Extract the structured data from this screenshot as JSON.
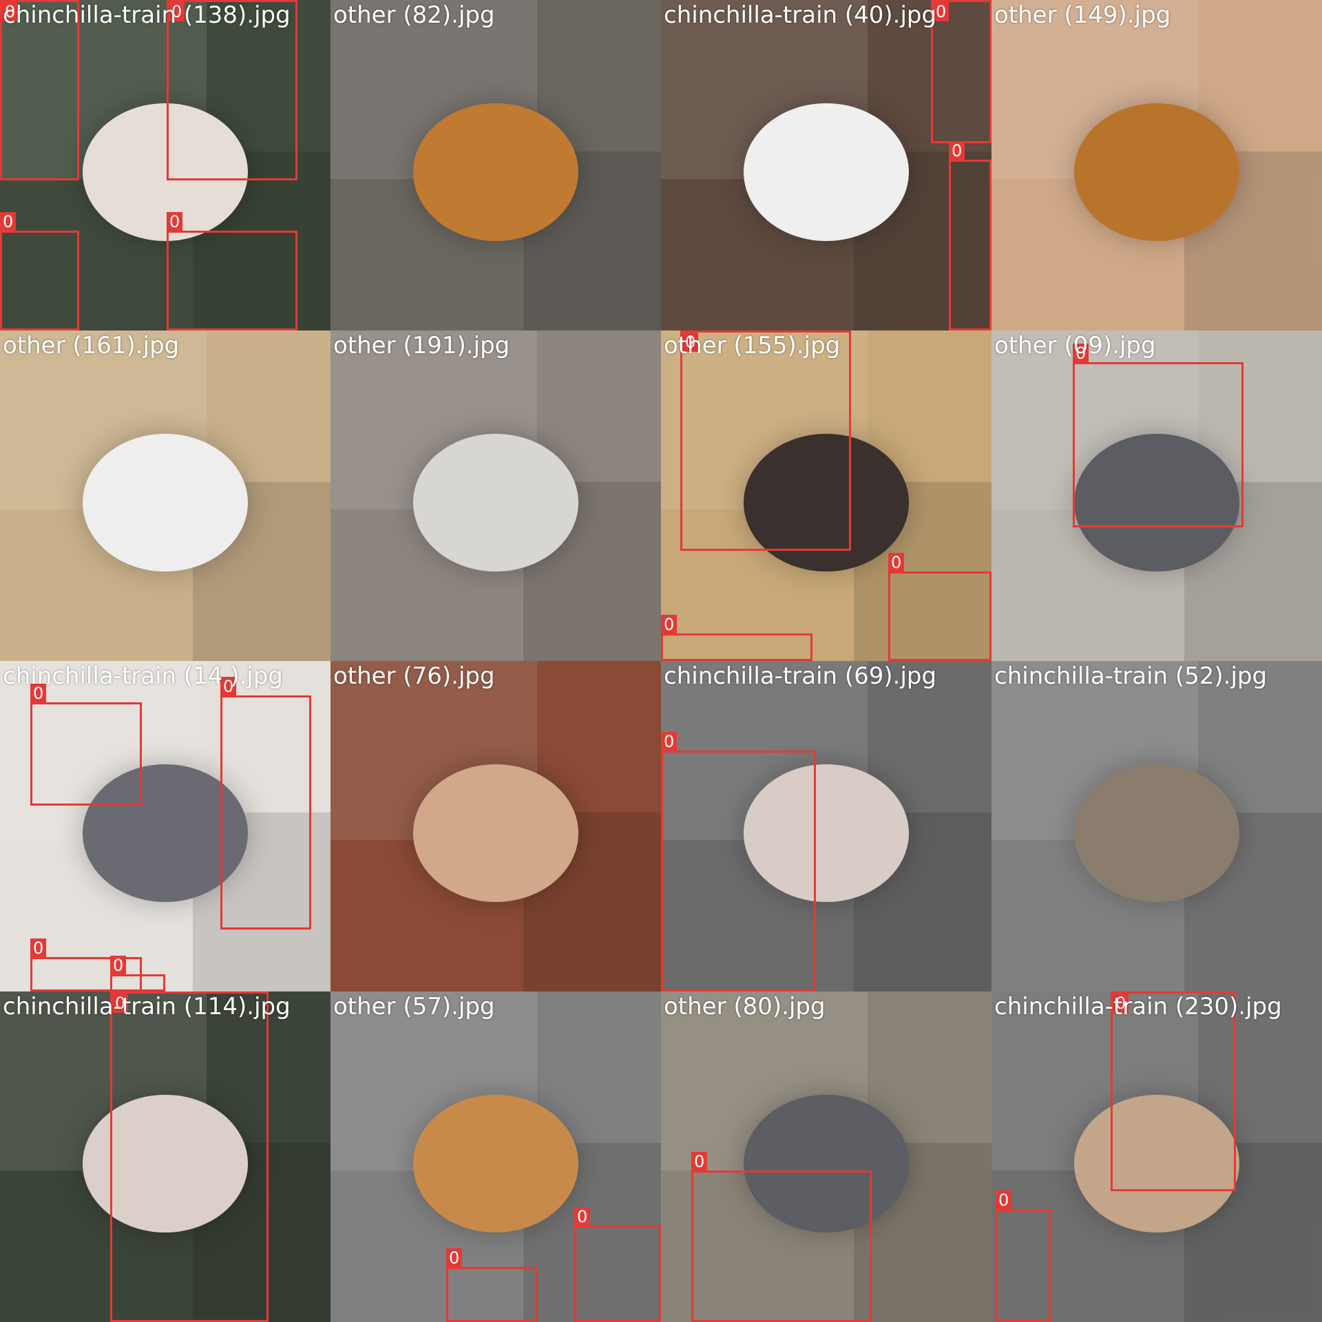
{
  "tiles": [
    {
      "label": "chinchilla-train (138).jpg",
      "bg": "#3f4a3c",
      "animal": "#e5ddd6",
      "boxes": 4
    },
    {
      "label": "other (82).jpg",
      "bg": "#6a6660",
      "animal": "#c07a32",
      "boxes": 0
    },
    {
      "label": "chinchilla-train (40).jpg",
      "bg": "#5e4a3f",
      "animal": "#efefef",
      "boxes": 2
    },
    {
      "label": "other (149).jpg",
      "bg": "#cfa888",
      "animal": "#b9742c",
      "boxes": 0
    },
    {
      "label": "other (161).jpg",
      "bg": "#c9b08a",
      "animal": "#eeeeee",
      "boxes": 0
    },
    {
      "label": "other (191).jpg",
      "bg": "#8d857f",
      "animal": "#d8d6d2",
      "boxes": 0
    },
    {
      "label": "other (155).jpg",
      "bg": "#c8a877",
      "animal": "#3a302d",
      "boxes": 3
    },
    {
      "label": "other (09).jpg",
      "bg": "#bcb7af",
      "animal": "#5c5d63",
      "boxes": 1
    },
    {
      "label": "chinchilla-train (14 ).jpg",
      "bg": "#e4e0dc",
      "animal": "#6a6a72",
      "boxes": 4
    },
    {
      "label": "other (76).jpg",
      "bg": "#8a4a36",
      "animal": "#d1a98a",
      "boxes": 0
    },
    {
      "label": "chinchilla-train (69).jpg",
      "bg": "#6b6b6b",
      "animal": "#d9cbc6",
      "boxes": 1
    },
    {
      "label": "chinchilla-train (52).jpg",
      "bg": "#808080",
      "animal": "#8a7d6e",
      "boxes": 0
    },
    {
      "label": "chinchilla-train (114).jpg",
      "bg": "#3b4438",
      "animal": "#dccfc9",
      "boxes": 1
    },
    {
      "label": "other (57).jpg",
      "bg": "#808080",
      "animal": "#c88a4a",
      "boxes": 2
    },
    {
      "label": "other (80).jpg",
      "bg": "#8a8377",
      "animal": "#5d5e63",
      "boxes": 1
    },
    {
      "label": "chinchilla-train (230).jpg",
      "bg": "#6f6f6f",
      "animal": "#c3a58a",
      "boxes": 2
    }
  ],
  "box_class": "0",
  "colors": {
    "box": "#e53935",
    "label": "#ffffff"
  }
}
